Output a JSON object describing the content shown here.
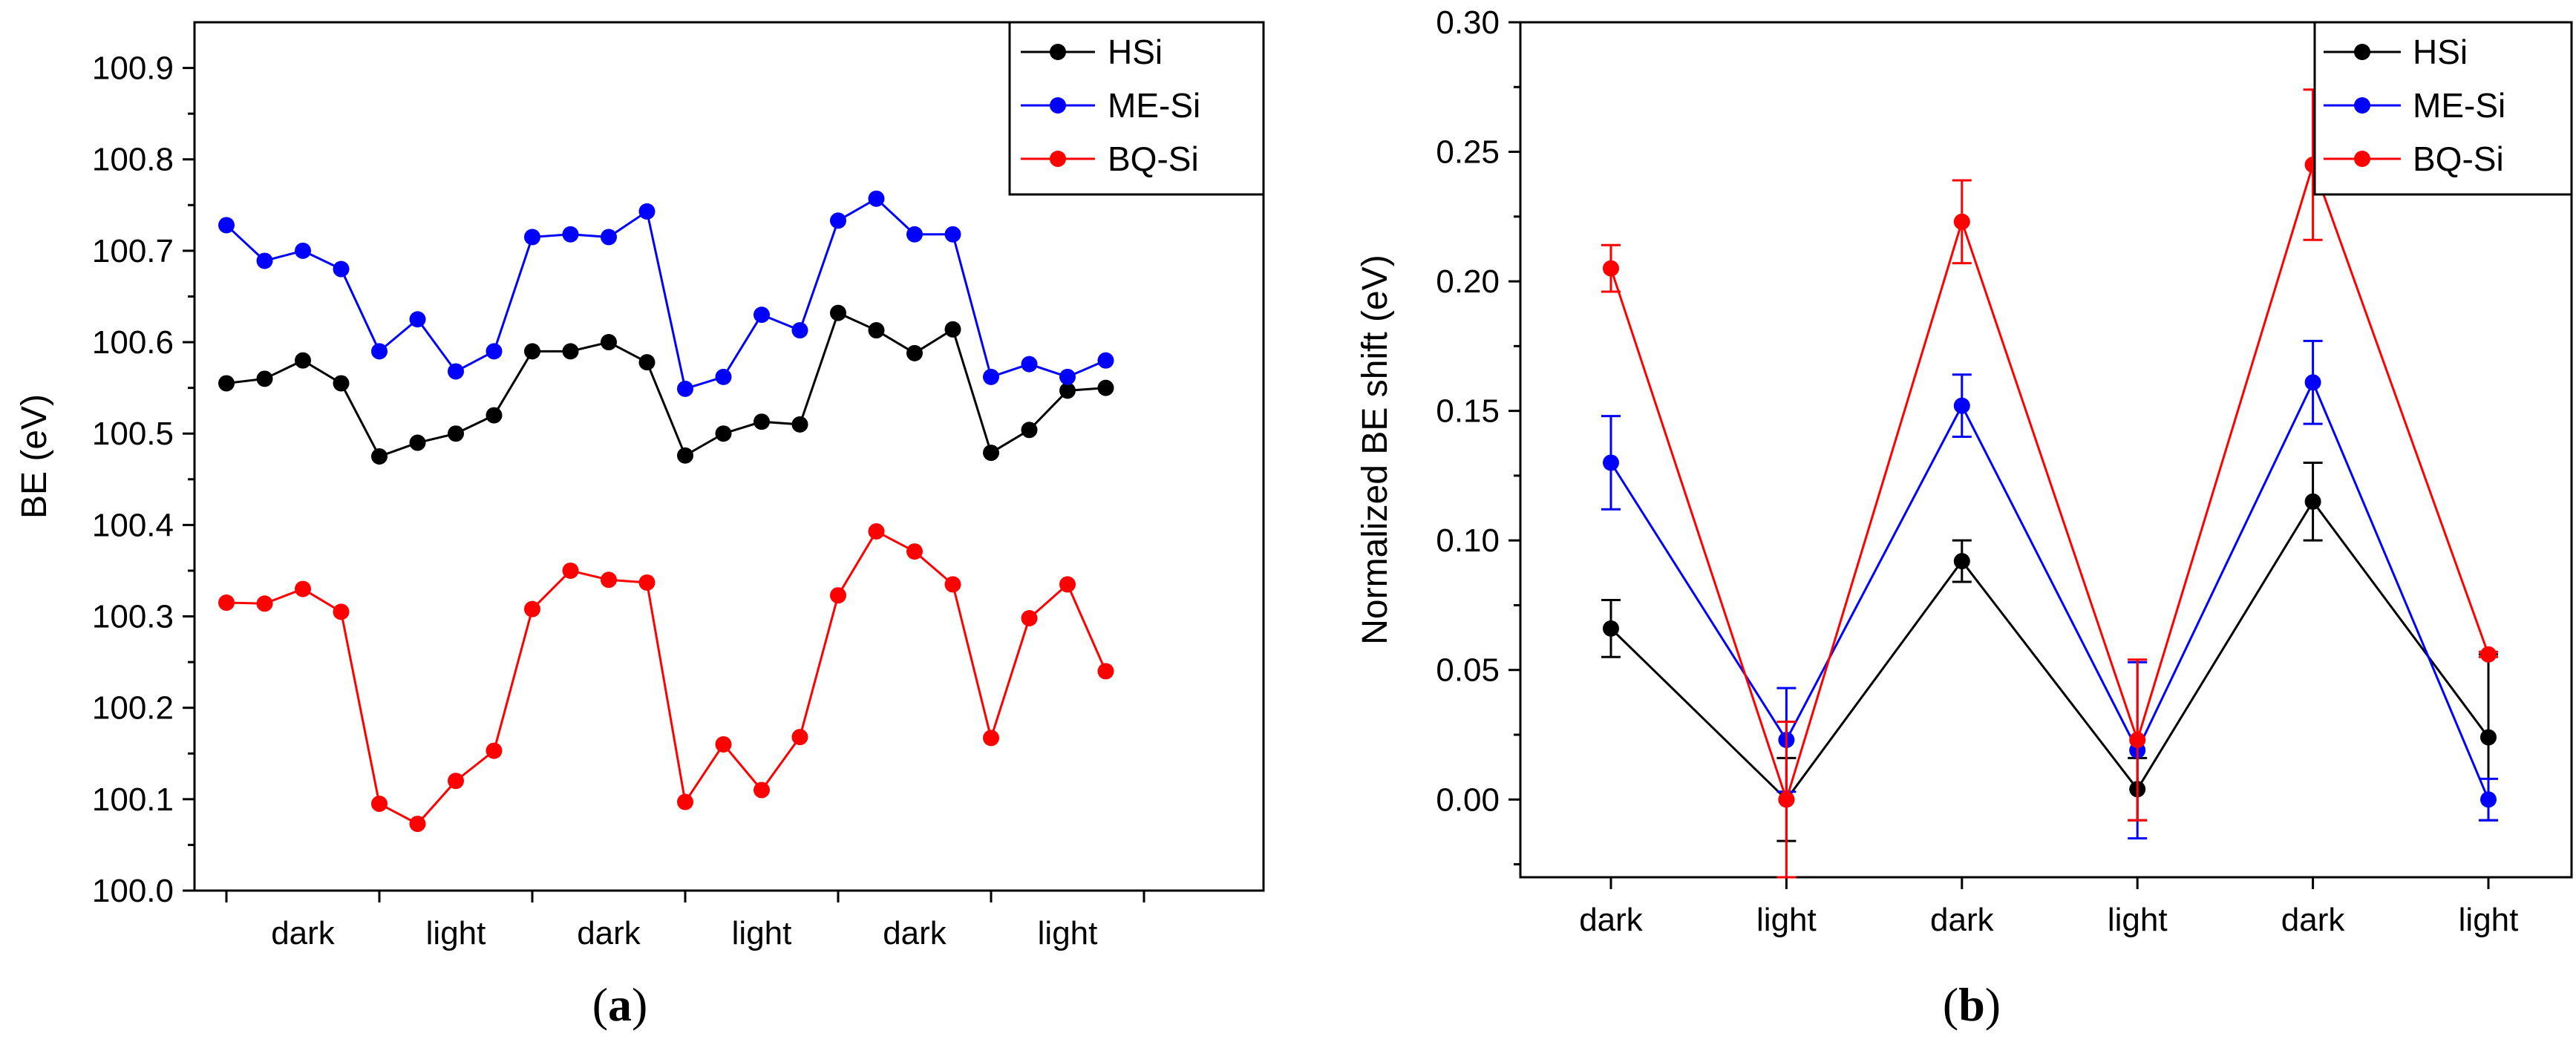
{
  "chart_data": [
    {
      "type": "line",
      "caption_open": "(",
      "caption_letter": "a",
      "caption_close": ")",
      "title": "",
      "xlabel": "",
      "ylabel": "BE (eV)",
      "ylim": [
        100.0,
        100.95
      ],
      "yticks": [
        "100.0",
        "100.1",
        "100.2",
        "100.3",
        "100.4",
        "100.5",
        "100.6",
        "100.7",
        "100.8",
        "100.9"
      ],
      "x_group_labels": [
        "dark",
        "light",
        "dark",
        "light",
        "dark",
        "light"
      ],
      "points_per_group": 4,
      "legend_position": "top-right",
      "series": [
        {
          "name": "HSi",
          "color": "#000000",
          "values": [
            100.555,
            100.56,
            100.58,
            100.555,
            100.475,
            100.49,
            100.5,
            100.52,
            100.59,
            100.59,
            100.6,
            100.578,
            100.476,
            100.5,
            100.513,
            100.51,
            100.632,
            100.613,
            100.588,
            100.614,
            100.479,
            100.504,
            100.547,
            100.55
          ]
        },
        {
          "name": "ME-Si",
          "color": "#0000ff",
          "values": [
            100.728,
            100.689,
            100.7,
            100.68,
            100.59,
            100.625,
            100.568,
            100.59,
            100.715,
            100.718,
            100.715,
            100.743,
            100.549,
            100.562,
            100.63,
            100.613,
            100.733,
            100.757,
            100.718,
            100.718,
            100.562,
            100.576,
            100.562,
            100.58
          ]
        },
        {
          "name": "BQ-Si",
          "color": "#ff0000",
          "values": [
            100.315,
            100.314,
            100.33,
            100.305,
            100.095,
            100.073,
            100.12,
            100.153,
            100.308,
            100.35,
            100.34,
            100.337,
            100.097,
            100.16,
            100.11,
            100.168,
            100.323,
            100.393,
            100.371,
            100.335,
            100.167,
            100.298,
            100.335,
            100.24
          ]
        }
      ]
    },
    {
      "type": "line",
      "caption_open": "(",
      "caption_letter": "b",
      "caption_close": ")",
      "title": "",
      "xlabel": "",
      "ylabel": "Normalized BE shift (eV)",
      "ylim": [
        -0.03,
        0.3
      ],
      "yticks": [
        "0.00",
        "0.05",
        "0.10",
        "0.15",
        "0.20",
        "0.25",
        "0.30"
      ],
      "categories": [
        "dark",
        "light",
        "dark",
        "light",
        "dark",
        "light"
      ],
      "legend_position": "top-right",
      "series": [
        {
          "name": "HSi",
          "color": "#000000",
          "values": [
            0.066,
            0.0,
            0.092,
            0.004,
            0.115,
            0.024
          ],
          "errors": [
            0.011,
            0.016,
            0.008,
            0.012,
            0.015,
            0.032
          ]
        },
        {
          "name": "ME-Si",
          "color": "#0000ff",
          "values": [
            0.13,
            0.023,
            0.152,
            0.019,
            0.161,
            0.0
          ],
          "errors": [
            0.018,
            0.02,
            0.012,
            0.034,
            0.016,
            0.008
          ]
        },
        {
          "name": "BQ-Si",
          "color": "#ff0000",
          "values": [
            0.205,
            0.0,
            0.223,
            0.023,
            0.245,
            0.056
          ],
          "errors": [
            0.009,
            0.03,
            0.016,
            0.031,
            0.029,
            0.001
          ]
        }
      ]
    }
  ]
}
